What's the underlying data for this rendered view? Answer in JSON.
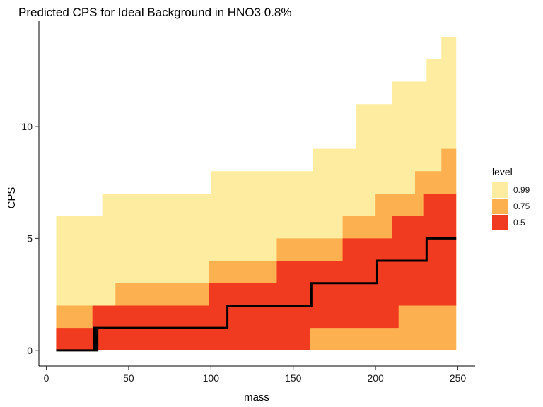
{
  "chart_data": {
    "type": "area",
    "title": "Predicted CPS for Ideal Background in HNO3 0.8%",
    "xlabel": "mass",
    "ylabel": "CPS",
    "xlim": [
      -4.5,
      260.5
    ],
    "ylim": [
      -0.7,
      14.7
    ],
    "x_ticks": [
      0,
      50,
      100,
      150,
      200,
      250
    ],
    "x_tick_labels": [
      "0",
      "50",
      "100",
      "150",
      "200",
      "250"
    ],
    "y_ticks": [
      0,
      5,
      10
    ],
    "y_tick_labels": [
      "0",
      "5",
      "10"
    ],
    "grid": false,
    "legend": {
      "title": "level",
      "position": "right",
      "entries": [
        {
          "label": "0.99",
          "color": "#FEEDA0"
        },
        {
          "label": "0.75",
          "color": "#FDB050"
        },
        {
          "label": "0.5",
          "color": "#F03B20"
        }
      ]
    },
    "bands": [
      {
        "level": "0.99",
        "color": "#FEEDA0",
        "lower": [
          [
            6,
            0
          ],
          [
            249,
            0
          ]
        ],
        "upper": [
          [
            6,
            6
          ],
          [
            34,
            6
          ],
          [
            34,
            7
          ],
          [
            100,
            7
          ],
          [
            100,
            8
          ],
          [
            162,
            8
          ],
          [
            162,
            9
          ],
          [
            188,
            9
          ],
          [
            188,
            11
          ],
          [
            210,
            11
          ],
          [
            210,
            12
          ],
          [
            231,
            12
          ],
          [
            231,
            13
          ],
          [
            240,
            13
          ],
          [
            240,
            14
          ],
          [
            249,
            14
          ]
        ]
      },
      {
        "level": "0.75",
        "color": "#FDB050",
        "lower": [
          [
            6,
            0
          ],
          [
            110,
            0
          ],
          [
            110,
            0
          ],
          [
            160,
            0
          ],
          [
            160,
            0
          ],
          [
            249,
            0
          ]
        ],
        "upper": [
          [
            6,
            2
          ],
          [
            42,
            2
          ],
          [
            42,
            3
          ],
          [
            99,
            3
          ],
          [
            99,
            4
          ],
          [
            140,
            4
          ],
          [
            140,
            5
          ],
          [
            180,
            5
          ],
          [
            180,
            6
          ],
          [
            200,
            6
          ],
          [
            200,
            7
          ],
          [
            224,
            7
          ],
          [
            224,
            8
          ],
          [
            240,
            8
          ],
          [
            240,
            9
          ],
          [
            249,
            9
          ]
        ]
      },
      {
        "level": "0.5",
        "color": "#F03B20",
        "lower": [
          [
            6,
            0
          ],
          [
            110,
            0
          ],
          [
            110,
            0
          ],
          [
            160,
            0
          ],
          [
            160,
            1
          ],
          [
            214,
            1
          ],
          [
            214,
            2
          ],
          [
            249,
            2
          ]
        ],
        "upper": [
          [
            6,
            1
          ],
          [
            28,
            1
          ],
          [
            28,
            2
          ],
          [
            99,
            2
          ],
          [
            99,
            3
          ],
          [
            140,
            3
          ],
          [
            140,
            4
          ],
          [
            180,
            4
          ],
          [
            180,
            5
          ],
          [
            210,
            5
          ],
          [
            210,
            6
          ],
          [
            229,
            6
          ],
          [
            229,
            7
          ],
          [
            249,
            7
          ]
        ]
      }
    ],
    "line": {
      "color": "#000000",
      "points": [
        [
          6,
          0
        ],
        [
          29,
          0
        ],
        [
          29,
          1
        ],
        [
          30,
          1
        ],
        [
          30,
          0
        ],
        [
          31,
          0
        ],
        [
          31,
          1
        ],
        [
          110,
          1
        ],
        [
          110,
          2
        ],
        [
          161,
          2
        ],
        [
          161,
          3
        ],
        [
          201,
          3
        ],
        [
          201,
          4
        ],
        [
          231,
          4
        ],
        [
          231,
          5
        ],
        [
          249,
          5
        ]
      ]
    }
  }
}
